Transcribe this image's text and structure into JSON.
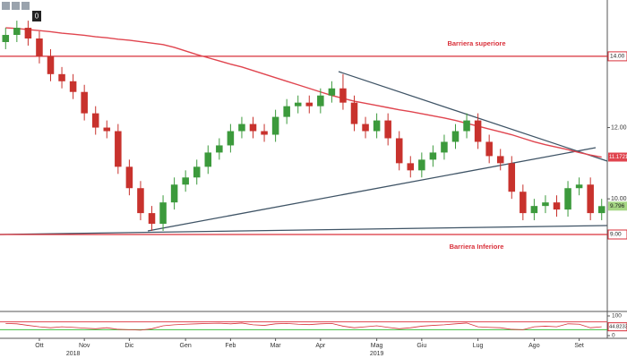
{
  "chart_data": {
    "type": "candlestick",
    "toolbar_label": "0",
    "categories": [
      null,
      null,
      null,
      "Ott",
      null,
      null,
      null,
      "Nov",
      null,
      null,
      null,
      "Dic",
      null,
      null,
      null,
      null,
      "Gen",
      null,
      null,
      null,
      "Feb",
      null,
      null,
      null,
      "Mar",
      null,
      null,
      null,
      "Apr",
      null,
      null,
      null,
      null,
      "Mag",
      null,
      null,
      null,
      "Giu",
      null,
      null,
      null,
      null,
      "Lug",
      null,
      null,
      null,
      null,
      "Ago",
      null,
      null,
      null,
      "Set",
      null,
      null
    ],
    "year_categories": [
      null,
      null,
      null,
      null,
      null,
      null,
      "2018",
      null,
      null,
      null,
      null,
      null,
      null,
      null,
      null,
      null,
      null,
      null,
      null,
      null,
      null,
      null,
      null,
      null,
      null,
      null,
      null,
      null,
      null,
      null,
      null,
      null,
      null,
      "2019",
      null,
      null,
      null,
      null,
      null,
      null,
      null,
      null,
      null,
      null,
      null,
      null,
      null,
      null,
      null,
      null,
      null,
      null,
      null,
      null
    ],
    "open": [
      14.4,
      14.6,
      14.8,
      14.5,
      14.0,
      13.5,
      13.3,
      13.0,
      12.4,
      12.0,
      11.9,
      10.9,
      10.3,
      9.6,
      9.3,
      9.9,
      10.4,
      10.6,
      10.9,
      11.3,
      11.5,
      11.9,
      12.1,
      11.9,
      11.8,
      12.3,
      12.6,
      12.7,
      12.6,
      12.9,
      13.1,
      12.7,
      12.1,
      11.9,
      12.2,
      11.7,
      11.0,
      10.8,
      11.1,
      11.3,
      11.6,
      11.9,
      12.2,
      11.6,
      11.2,
      11.0,
      10.2,
      9.6,
      9.8,
      9.9,
      9.7,
      10.3,
      10.4,
      9.6
    ],
    "high": [
      14.8,
      15.0,
      15.0,
      14.7,
      14.2,
      13.7,
      13.5,
      13.2,
      12.6,
      12.2,
      12.1,
      11.1,
      10.5,
      9.8,
      10.1,
      10.6,
      10.8,
      11.1,
      11.5,
      11.7,
      12.1,
      12.3,
      12.3,
      12.1,
      12.5,
      12.8,
      12.9,
      12.9,
      13.1,
      13.3,
      13.5,
      12.9,
      12.3,
      12.4,
      12.4,
      11.9,
      11.2,
      11.3,
      11.5,
      11.8,
      12.1,
      12.4,
      12.4,
      11.8,
      11.4,
      11.2,
      10.4,
      10.0,
      10.1,
      10.1,
      10.5,
      10.6,
      10.6,
      10.0
    ],
    "low": [
      14.2,
      14.4,
      14.3,
      13.8,
      13.3,
      13.1,
      12.8,
      12.2,
      11.8,
      11.7,
      10.7,
      10.1,
      9.4,
      9.1,
      9.1,
      9.7,
      10.2,
      10.4,
      10.7,
      11.1,
      11.3,
      11.7,
      11.7,
      11.6,
      11.6,
      12.1,
      12.4,
      12.4,
      12.4,
      12.7,
      12.5,
      11.9,
      11.7,
      11.7,
      11.5,
      10.8,
      10.6,
      10.6,
      10.9,
      11.1,
      11.4,
      11.7,
      11.4,
      11.0,
      10.8,
      10.0,
      9.4,
      9.4,
      9.6,
      9.5,
      9.5,
      10.1,
      9.4,
      9.4
    ],
    "close": [
      14.6,
      14.8,
      14.5,
      14.0,
      13.5,
      13.3,
      13.0,
      12.4,
      12.0,
      11.9,
      10.9,
      10.3,
      9.6,
      9.3,
      9.9,
      10.4,
      10.6,
      10.9,
      11.3,
      11.5,
      11.9,
      12.1,
      11.9,
      11.8,
      12.3,
      12.6,
      12.7,
      12.6,
      12.9,
      13.1,
      12.7,
      12.1,
      11.9,
      12.2,
      11.7,
      11.0,
      10.8,
      11.1,
      11.3,
      11.6,
      11.9,
      12.2,
      11.6,
      11.2,
      11.0,
      10.2,
      9.6,
      9.8,
      9.9,
      9.7,
      10.3,
      10.4,
      9.6,
      9.796
    ],
    "up_color": "#3c9a3c",
    "down_color": "#c8322d",
    "ma": {
      "color": "#e0454f",
      "values": [
        14.8,
        14.78,
        14.75,
        14.72,
        14.69,
        14.65,
        14.62,
        14.59,
        14.55,
        14.52,
        14.48,
        14.45,
        14.41,
        14.37,
        14.33,
        14.25,
        14.15,
        14.05,
        13.96,
        13.87,
        13.78,
        13.7,
        13.6,
        13.5,
        13.4,
        13.3,
        13.2,
        13.1,
        13.0,
        12.9,
        12.82,
        12.74,
        12.68,
        12.62,
        12.56,
        12.5,
        12.45,
        12.39,
        12.33,
        12.27,
        12.2,
        12.12,
        12.04,
        11.96,
        11.88,
        11.8,
        11.7,
        11.6,
        11.52,
        11.45,
        11.38,
        11.3,
        11.23,
        11.1721
      ]
    },
    "ylim": [
      6.84,
      15.58
    ],
    "yticks": [
      {
        "value": 10,
        "label": "10.00"
      },
      {
        "value": 12,
        "label": "12.00"
      }
    ],
    "levels": [
      {
        "value": 14,
        "label": "14.00",
        "name": "Barriera superiore",
        "color": "#d9303a"
      },
      {
        "value": 9,
        "label": "9.00",
        "name": "Barriera Inferiore",
        "color": "#d9303a"
      }
    ],
    "rsi": {
      "color": "#d9303a",
      "values": [
        62,
        60,
        52,
        45,
        40,
        45,
        42,
        38,
        35,
        40,
        32,
        30,
        28,
        35,
        50,
        55,
        58,
        60,
        62,
        63,
        60,
        64,
        55,
        52,
        60,
        62,
        58,
        56,
        60,
        62,
        48,
        40,
        45,
        50,
        42,
        35,
        40,
        48,
        52,
        55,
        60,
        64,
        45,
        42,
        40,
        32,
        30,
        45,
        48,
        45,
        60,
        58,
        40,
        44.8233
      ]
    },
    "rsi_ylim": [
      0,
      100
    ],
    "rsi_ticks": [
      0,
      100
    ],
    "rsi_levels": [
      {
        "value": 70,
        "color": "#e0454f"
      },
      {
        "value": 30,
        "color": "#3fbf3f"
      }
    ]
  }
}
